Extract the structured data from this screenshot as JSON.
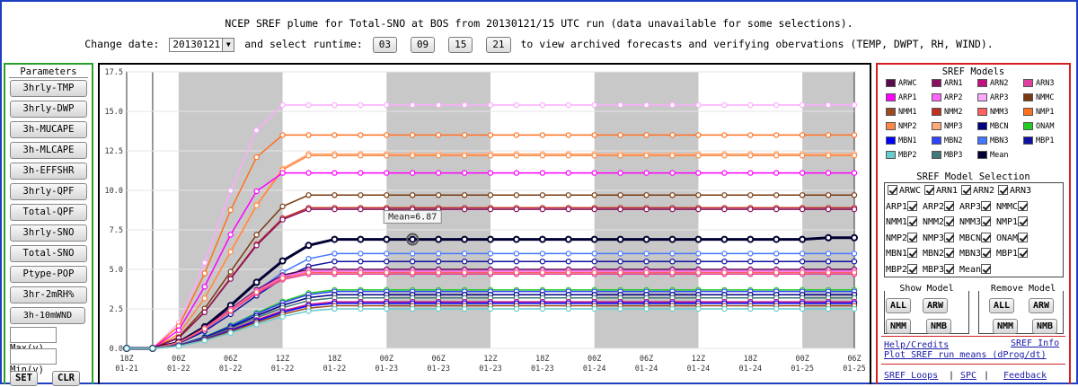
{
  "header": {
    "title": "NCEP SREF plume for Total-SNO at BOS from 20130121/15 UTC run (data unavailable for some selections).",
    "change_date_label": "Change date:",
    "date_value": "20130121",
    "select_runtime_label": "and select runtime:",
    "runtimes": [
      "03",
      "09",
      "15",
      "21"
    ],
    "tail_text": "to view archived forecasts and verifying obervations (TEMP, DWPT, RH, WIND)."
  },
  "left_panel": {
    "title": "Parameters",
    "buttons": [
      "3hrly-TMP",
      "3hrly-DWP",
      "3h-MUCAPE",
      "3h-MLCAPE",
      "3h-EFFSHR",
      "3hrly-QPF",
      "Total-QPF",
      "3hrly-SNO",
      "Total-SNO",
      "Ptype-POP",
      "3hr-2mRH%",
      "3h-10mWND"
    ],
    "max_label": "Max(y)",
    "min_label": "Min(y)",
    "set_label": "SET",
    "clr_label": "CLR"
  },
  "right_panel": {
    "models_title": "SREF Models",
    "models": [
      {
        "name": "ARWC",
        "color": "#5a0a4a"
      },
      {
        "name": "ARN1",
        "color": "#8a1060"
      },
      {
        "name": "ARN2",
        "color": "#c01080"
      },
      {
        "name": "ARN3",
        "color": "#e040a0"
      },
      {
        "name": "ARP1",
        "color": "#ff00ff"
      },
      {
        "name": "ARP2",
        "color": "#ff66ff"
      },
      {
        "name": "ARP3",
        "color": "#ffaaff"
      },
      {
        "name": "NMMC",
        "color": "#7a3a10"
      },
      {
        "name": "NMM1",
        "color": "#9a4a20"
      },
      {
        "name": "NMM2",
        "color": "#c03020"
      },
      {
        "name": "NMM3",
        "color": "#ff6060"
      },
      {
        "name": "NMP1",
        "color": "#ff7020"
      },
      {
        "name": "NMP2",
        "color": "#ff8844"
      },
      {
        "name": "NMP3",
        "color": "#ffaa77"
      },
      {
        "name": "MBCN",
        "color": "#000080"
      },
      {
        "name": "ONAM",
        "color": "#22cc22"
      },
      {
        "name": "MBN1",
        "color": "#0000ff"
      },
      {
        "name": "MBN2",
        "color": "#3344ff"
      },
      {
        "name": "MBN3",
        "color": "#4477ff"
      },
      {
        "name": "MBP1",
        "color": "#1010a0"
      },
      {
        "name": "MBP2",
        "color": "#66cccc"
      },
      {
        "name": "MBP3",
        "color": "#447777"
      },
      {
        "name": "Mean",
        "color": "#000033"
      }
    ],
    "selection_title": "SREF Model Selection",
    "selection_rows": [
      [
        "ARWC",
        "ARN1",
        "ARN2",
        "ARN3"
      ],
      [
        "ARP1",
        "ARP2",
        "ARP3",
        "NMMC"
      ],
      [
        "NMM1",
        "NMM2",
        "NMM3",
        "NMP1"
      ],
      [
        "NMP2",
        "NMP3",
        "MBCN",
        "ONAM"
      ],
      [
        "MBN1",
        "MBN2",
        "MBN3",
        "MBP1"
      ],
      [
        "MBP2",
        "MBP3",
        "Mean"
      ]
    ],
    "show_model_title": "Show Model",
    "remove_model_title": "Remove Model",
    "show_buttons": [
      "ALL",
      "ARW",
      "NMM",
      "NMB"
    ],
    "remove_buttons": [
      "ALL",
      "ARW",
      "NMM",
      "NMB"
    ],
    "links": {
      "help": "Help/Credits",
      "sref_info": "SREF Info",
      "plot_means": "Plot SREF run means (dProg/dt)",
      "loops": "SREF Loops",
      "spc": "SPC",
      "feedback": "Feedback",
      "sep": "|"
    }
  },
  "chart_data": {
    "type": "line",
    "title": "",
    "xlabel": "",
    "ylabel": "",
    "ylim": [
      0,
      17.5
    ],
    "y_ticks": [
      "0.0",
      "2.5",
      "5.0",
      "7.5",
      "10.0",
      "12.5",
      "15.0",
      "17.5"
    ],
    "x_ticks": [
      [
        "18Z",
        "01-21"
      ],
      [
        "00Z",
        "01-22"
      ],
      [
        "06Z",
        "01-22"
      ],
      [
        "12Z",
        "01-22"
      ],
      [
        "18Z",
        "01-22"
      ],
      [
        "00Z",
        "01-23"
      ],
      [
        "06Z",
        "01-23"
      ],
      [
        "12Z",
        "01-23"
      ],
      [
        "18Z",
        "01-23"
      ],
      [
        "00Z",
        "01-24"
      ],
      [
        "06Z",
        "01-24"
      ],
      [
        "12Z",
        "01-24"
      ],
      [
        "18Z",
        "01-24"
      ],
      [
        "00Z",
        "01-25"
      ],
      [
        "06Z",
        "01-25"
      ]
    ],
    "shaded_periods": [
      [
        2,
        6
      ],
      [
        10,
        14
      ],
      [
        18,
        22
      ],
      [
        26,
        28
      ]
    ],
    "tooltip": "Mean=6.87",
    "series": [
      {
        "model": "ARP3",
        "color": "#ffaaff",
        "final": 15.4,
        "t0": 1,
        "rise": 5,
        "width": 1.5
      },
      {
        "model": "NMP1",
        "color": "#ff7020",
        "final": 13.5,
        "t0": 1,
        "rise": 5,
        "width": 1.5
      },
      {
        "model": "NMP3",
        "color": "#ffaa77",
        "final": 12.3,
        "t0": 1,
        "rise": 6,
        "width": 1.5
      },
      {
        "model": "NMP2",
        "color": "#ff8844",
        "final": 12.2,
        "t0": 1,
        "rise": 6,
        "width": 1.5
      },
      {
        "model": "ARP1",
        "color": "#ff00ff",
        "final": 11.1,
        "t0": 1,
        "rise": 5,
        "width": 1.5
      },
      {
        "model": "NMMC",
        "color": "#7a3a10",
        "final": 9.7,
        "t0": 1,
        "rise": 6,
        "width": 1.5
      },
      {
        "model": "NMM2",
        "color": "#c03020",
        "final": 8.9,
        "t0": 1,
        "rise": 6,
        "width": 1.5
      },
      {
        "model": "ARN1",
        "color": "#8a1060",
        "final": 8.8,
        "t0": 1,
        "rise": 6,
        "width": 1.5
      },
      {
        "model": "Mean",
        "color": "#000033",
        "final": 6.9,
        "t0": 1,
        "rise": 7,
        "width": 3,
        "end": 7.0
      },
      {
        "model": "MBN3",
        "color": "#4477ff",
        "final": 6.0,
        "t0": 1,
        "rise": 7,
        "width": 1.5
      },
      {
        "model": "MBP1",
        "color": "#1010a0",
        "final": 5.5,
        "t0": 1,
        "rise": 7,
        "width": 1.5
      },
      {
        "model": "ARWC",
        "color": "#5a0a4a",
        "final": 5.0,
        "t0": 1,
        "rise": 6,
        "width": 1.5
      },
      {
        "model": "ARP2",
        "color": "#ff66ff",
        "final": 4.9,
        "t0": 1,
        "rise": 6,
        "width": 1.5
      },
      {
        "model": "ARN3",
        "color": "#e040a0",
        "final": 4.7,
        "t0": 1,
        "rise": 6,
        "width": 1.5
      },
      {
        "model": "NMM3",
        "color": "#ff6060",
        "final": 4.8,
        "t0": 1,
        "rise": 6,
        "width": 1.5
      },
      {
        "model": "ONAM",
        "color": "#22cc22",
        "final": 3.7,
        "t0": 1,
        "rise": 7,
        "width": 1.5
      },
      {
        "model": "MBN2",
        "color": "#3344ff",
        "final": 3.6,
        "t0": 1,
        "rise": 7,
        "width": 1.5
      },
      {
        "model": "MBCN",
        "color": "#000080",
        "final": 3.4,
        "t0": 1,
        "rise": 7,
        "width": 1.5
      },
      {
        "model": "MBP3",
        "color": "#447777",
        "final": 3.2,
        "t0": 1,
        "rise": 7,
        "width": 1.5
      },
      {
        "model": "ARN2",
        "color": "#c01080",
        "final": 2.95,
        "t0": 1,
        "rise": 7,
        "width": 1.5
      },
      {
        "model": "MBN1",
        "color": "#0000ff",
        "final": 2.85,
        "t0": 1,
        "rise": 7,
        "width": 1.5
      },
      {
        "model": "NMM1",
        "color": "#9a4a20",
        "final": 2.7,
        "t0": 1,
        "rise": 7,
        "width": 1.5
      },
      {
        "model": "MBP2",
        "color": "#66cccc",
        "final": 2.5,
        "t0": 1,
        "rise": 7,
        "width": 1.5
      }
    ]
  }
}
